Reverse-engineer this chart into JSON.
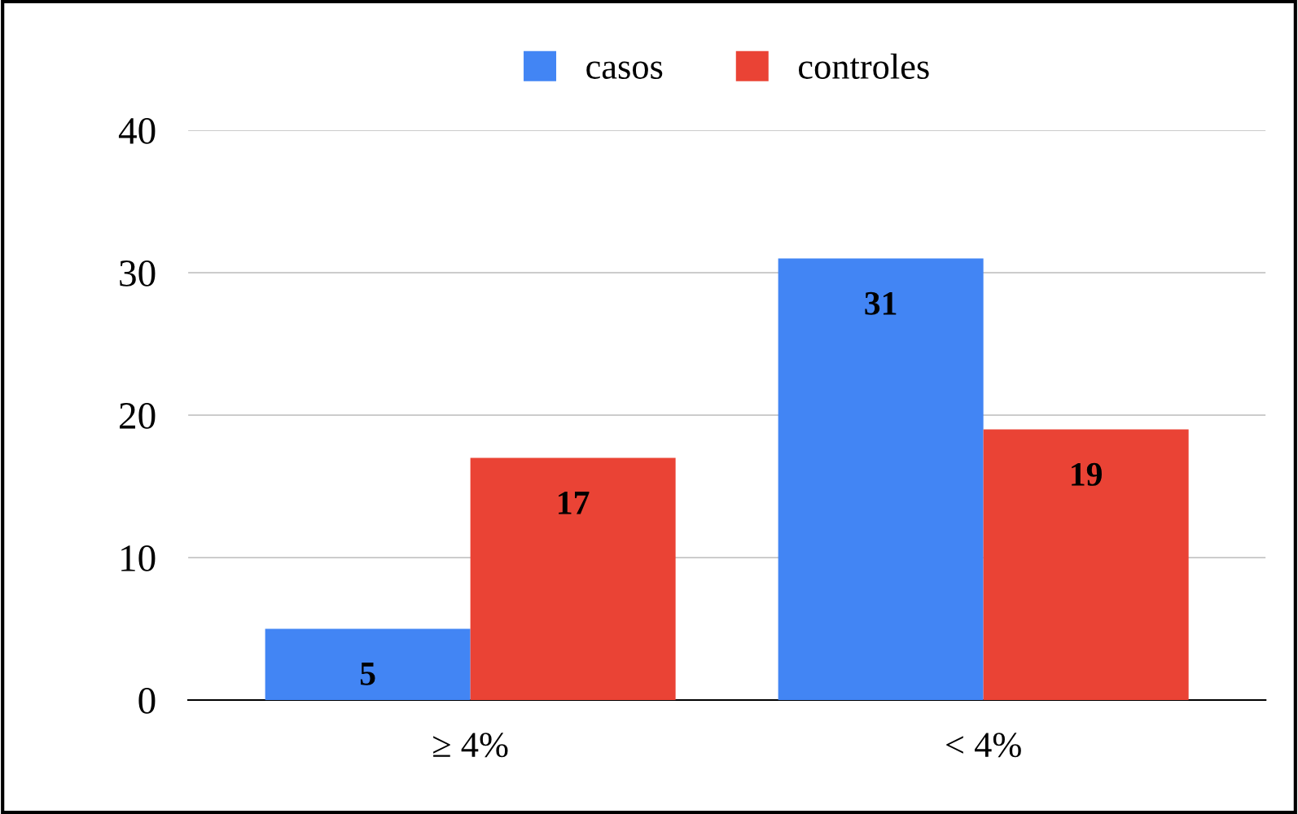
{
  "chart_data": {
    "type": "bar",
    "categories": [
      "≥ 4%",
      "< 4%"
    ],
    "series": [
      {
        "name": "casos",
        "color": "#4285f4",
        "values": [
          5,
          31
        ]
      },
      {
        "name": "controles",
        "color": "#ea4335",
        "values": [
          17,
          19
        ]
      }
    ],
    "ylim": [
      0,
      40
    ],
    "yticks": [
      0,
      10,
      20,
      30,
      40
    ],
    "grid": "y",
    "legend": "top",
    "data_labels": true
  }
}
